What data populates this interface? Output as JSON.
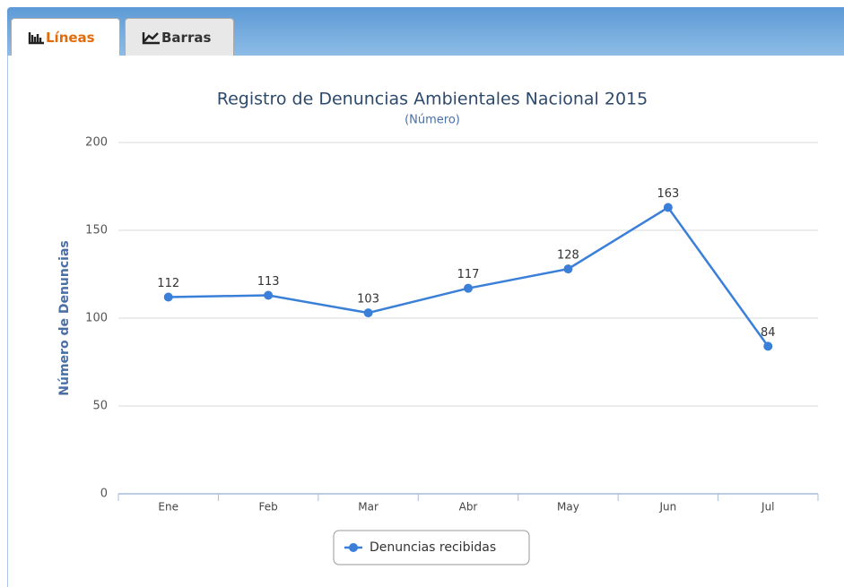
{
  "tabs": [
    {
      "label": "Líneas"
    },
    {
      "label": "Barras"
    }
  ],
  "chart_data": {
    "type": "line",
    "title": "Registro de Denuncias Ambientales Nacional 2015",
    "subtitle": "(Número)",
    "y_axis_label": "Número de Denuncias",
    "categories": [
      "Ene",
      "Feb",
      "Mar",
      "Abr",
      "May",
      "Jun",
      "Jul"
    ],
    "series": [
      {
        "name": "Denuncias recibidas",
        "color": "#3a7fd8",
        "values": [
          112,
          113,
          103,
          117,
          128,
          163,
          84
        ]
      }
    ],
    "ylim": [
      0,
      200
    ],
    "yticks": [
      0,
      50,
      100,
      150,
      200
    ],
    "grid": true,
    "legend": "bottom"
  }
}
